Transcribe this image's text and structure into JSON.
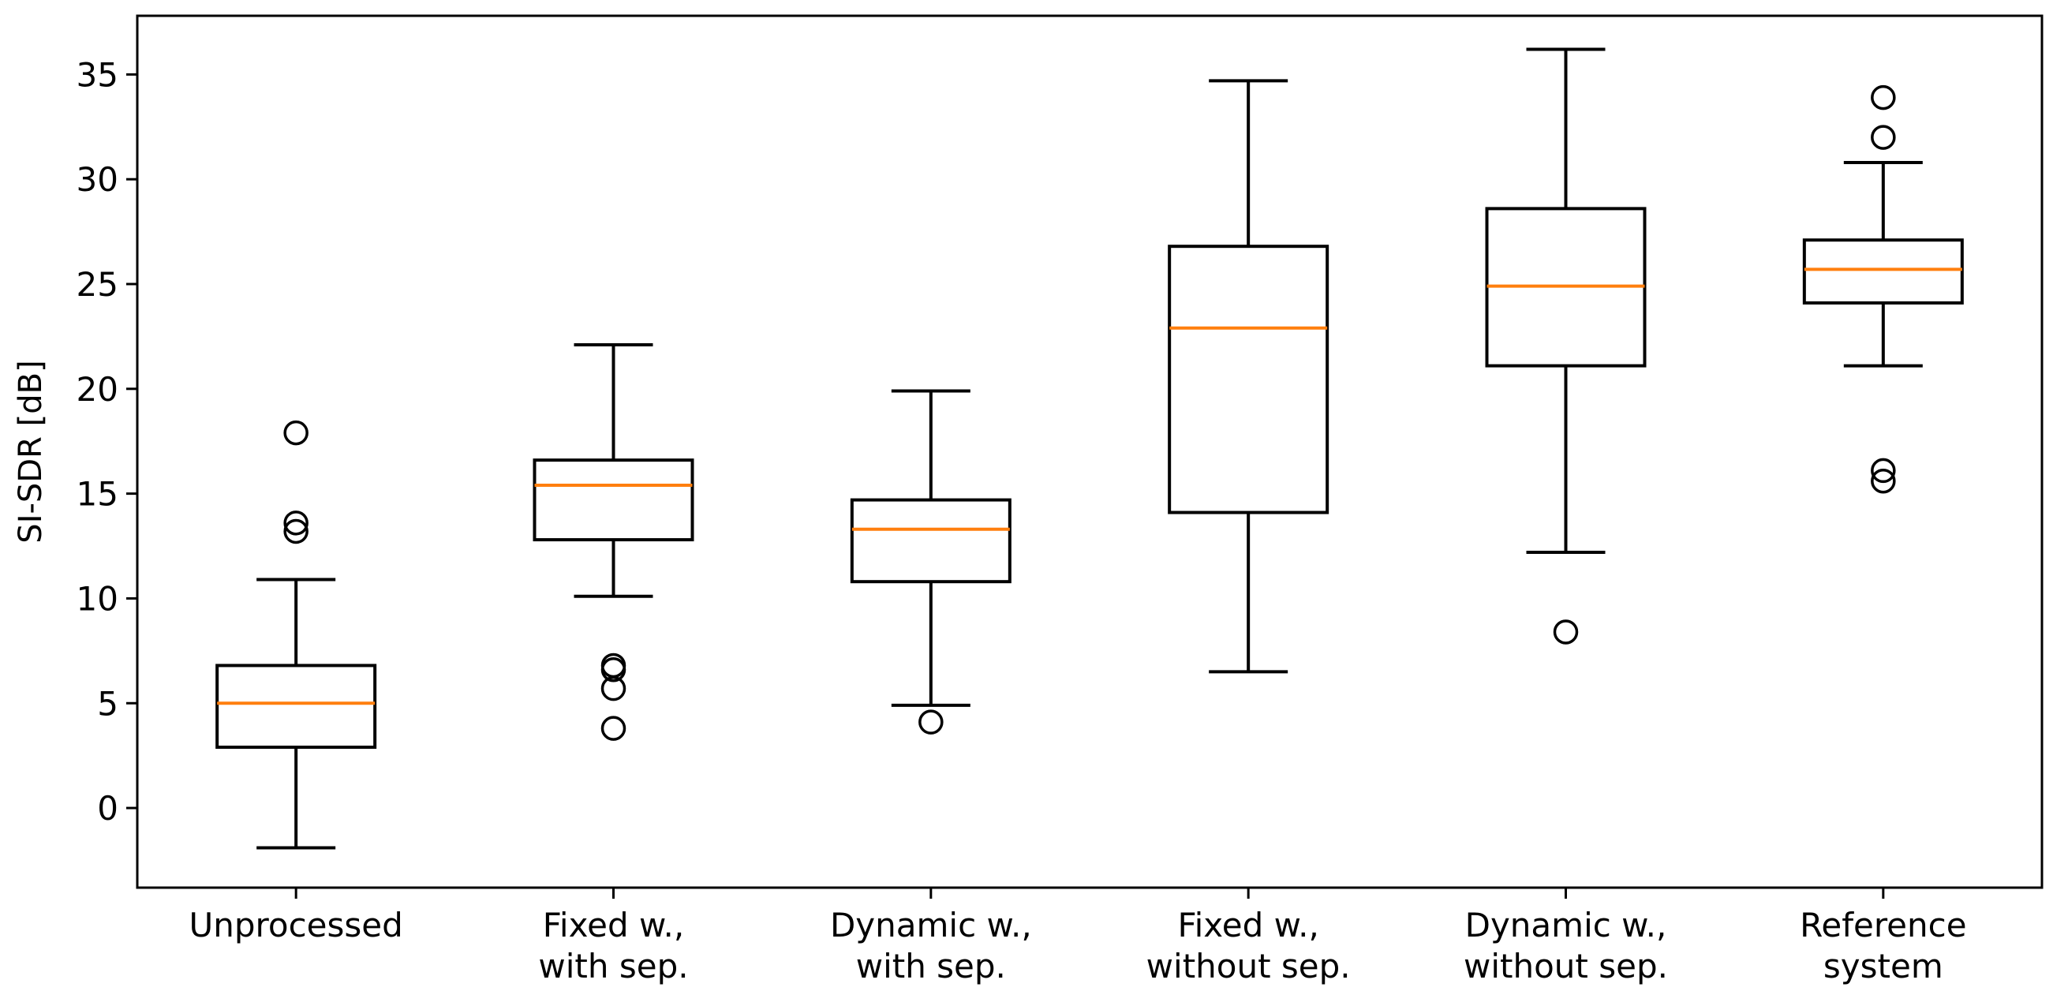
{
  "chart_data": {
    "type": "boxplot",
    "title": "",
    "xlabel": "",
    "ylabel": "SI-SDR [dB]",
    "ylim": [
      -3.8,
      37.8
    ],
    "yticks": [
      0,
      5,
      10,
      15,
      20,
      25,
      30,
      35
    ],
    "ytick_labels": [
      "0",
      "5",
      "10",
      "15",
      "20",
      "25",
      "30",
      "35"
    ],
    "grid": false,
    "colors": {
      "box": "#000000",
      "median": "#ff7f0e",
      "background": "#ffffff"
    },
    "categories": [
      {
        "lines": [
          "Unprocessed"
        ]
      },
      {
        "lines": [
          "Fixed w.,",
          "with sep."
        ]
      },
      {
        "lines": [
          "Dynamic w.,",
          "with sep."
        ]
      },
      {
        "lines": [
          "Fixed w.,",
          "without sep."
        ]
      },
      {
        "lines": [
          "Dynamic w.,",
          "without sep."
        ]
      },
      {
        "lines": [
          "Reference",
          "system"
        ]
      }
    ],
    "boxes": [
      {
        "whisker_low": -1.9,
        "q1": 2.9,
        "median": 5.0,
        "q3": 6.8,
        "whisker_high": 10.9,
        "outliers": [
          13.2,
          13.6,
          17.9
        ]
      },
      {
        "whisker_low": 10.1,
        "q1": 12.8,
        "median": 15.4,
        "q3": 16.6,
        "whisker_high": 22.1,
        "outliers": [
          3.8,
          5.7,
          6.6,
          6.8
        ]
      },
      {
        "whisker_low": 4.9,
        "q1": 10.8,
        "median": 13.3,
        "q3": 14.7,
        "whisker_high": 19.9,
        "outliers": [
          4.1
        ]
      },
      {
        "whisker_low": 6.5,
        "q1": 14.1,
        "median": 22.9,
        "q3": 26.8,
        "whisker_high": 34.7,
        "outliers": []
      },
      {
        "whisker_low": 12.2,
        "q1": 21.1,
        "median": 24.9,
        "q3": 28.6,
        "whisker_high": 36.2,
        "outliers": [
          8.4
        ]
      },
      {
        "whisker_low": 21.1,
        "q1": 24.1,
        "median": 25.7,
        "q3": 27.1,
        "whisker_high": 30.8,
        "outliers": [
          15.6,
          16.1,
          32.0,
          33.9
        ]
      }
    ]
  }
}
